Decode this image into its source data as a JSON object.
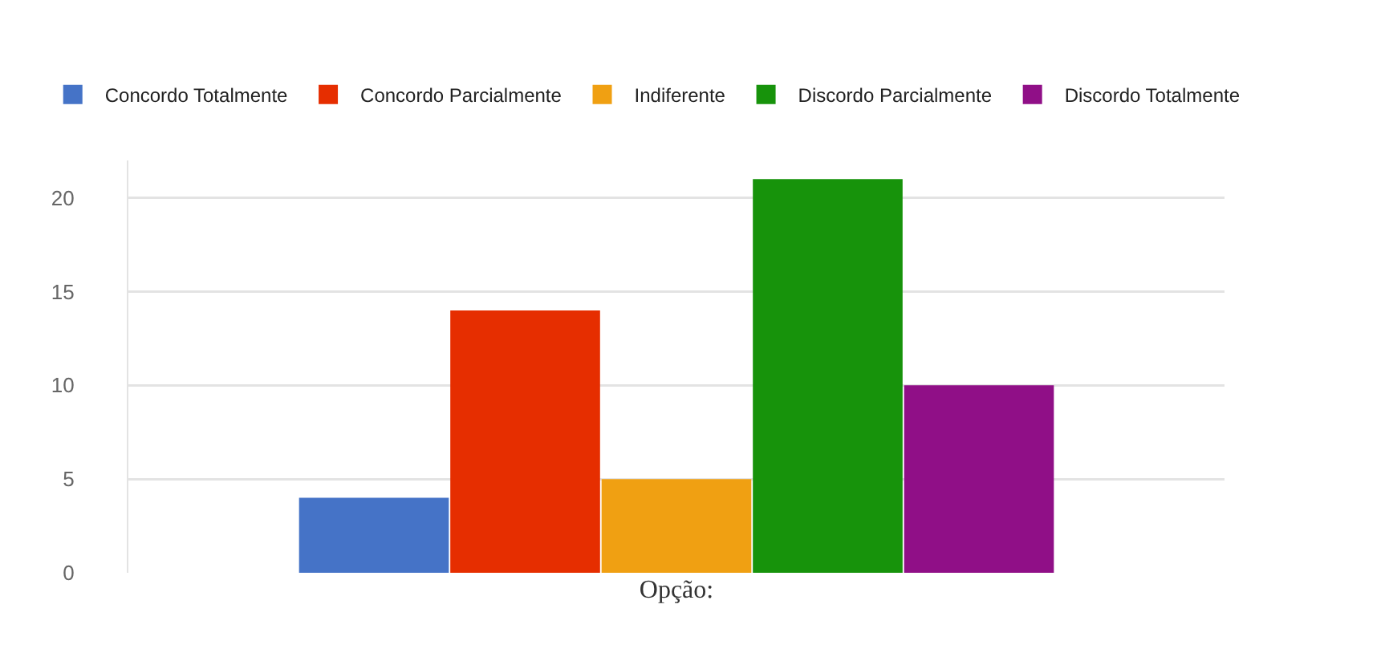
{
  "chart_data": {
    "type": "bar",
    "categories": [
      null
    ],
    "xlabel": "Opção:",
    "series": [
      {
        "name": "Concordo Totalmente",
        "color": "#4573c7",
        "values": [
          4
        ]
      },
      {
        "name": "Concordo Parcialmente",
        "color": "#e62e00",
        "values": [
          14
        ]
      },
      {
        "name": "Indiferente",
        "color": "#f0a012",
        "values": [
          5
        ]
      },
      {
        "name": "Discordo Parcialmente",
        "color": "#17930b",
        "values": [
          21
        ]
      },
      {
        "name": "Discordo Totalmente",
        "color": "#900f87",
        "values": [
          10
        ]
      }
    ],
    "ylim": [
      0,
      22
    ],
    "yticks": [
      0,
      5,
      10,
      15,
      20
    ],
    "grid": "y",
    "legend": "top"
  }
}
